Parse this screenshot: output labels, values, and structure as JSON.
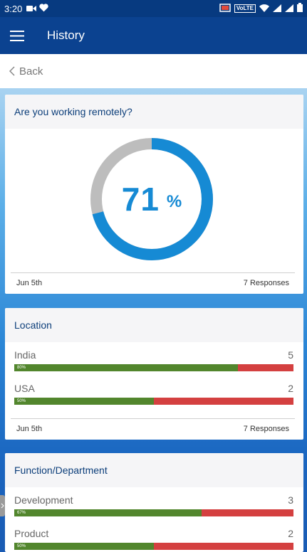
{
  "status_bar": {
    "time": "3:20",
    "volte_badge": "VoLTE"
  },
  "app_bar": {
    "title": "History"
  },
  "back": {
    "label": "Back"
  },
  "cards": {
    "remote": {
      "question": "Are you working remotely?",
      "percent_value": "71",
      "percent_sign": "%",
      "percent_fraction": 0.71,
      "date": "Jun 5th",
      "responses": "7 Responses",
      "colors": {
        "yes": "#168ad4",
        "no": "#bdbdbd"
      }
    },
    "location": {
      "title": "Location",
      "rows": [
        {
          "label": "India",
          "count": "5",
          "bar_label": "80%",
          "fraction": 0.8
        },
        {
          "label": "USA",
          "count": "2",
          "bar_label": "50%",
          "fraction": 0.5
        }
      ],
      "date": "Jun 5th",
      "responses": "7 Responses"
    },
    "function": {
      "title": "Function/Department",
      "rows": [
        {
          "label": "Development",
          "count": "3",
          "bar_label": "67%",
          "fraction": 0.67
        },
        {
          "label": "Product",
          "count": "2",
          "bar_label": "50%",
          "fraction": 0.5
        }
      ]
    }
  },
  "colors": {
    "bar_green": "#52862d",
    "bar_red": "#d44040",
    "app_bar": "#0b4290"
  }
}
